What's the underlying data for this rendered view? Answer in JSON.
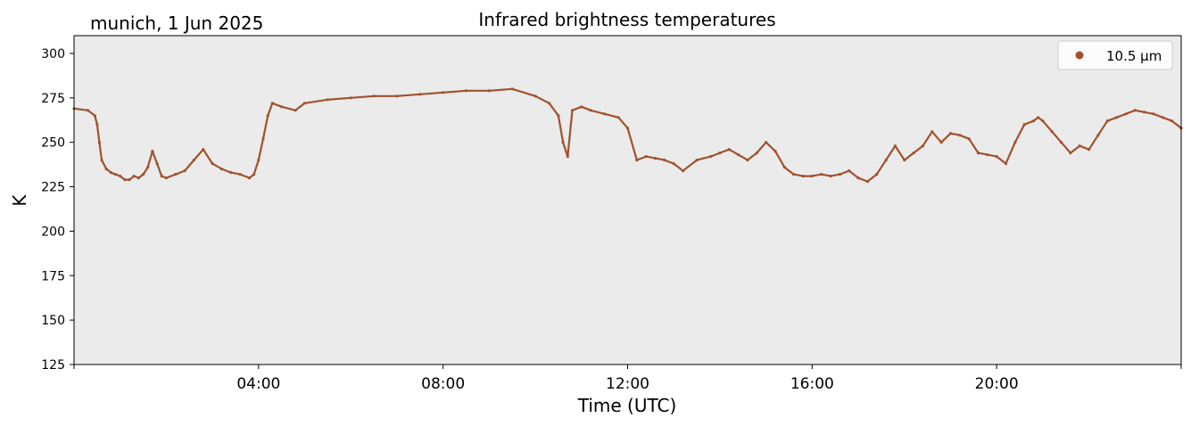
{
  "corner_label": "munich, 1 Jun 2025",
  "chart_data": {
    "type": "scatter",
    "title": "Infrared brightness temperatures",
    "xlabel": "Time (UTC)",
    "ylabel": "K",
    "xlim": [
      "00:00",
      "24:00"
    ],
    "ylim": [
      125,
      310
    ],
    "x_ticks": [
      "04:00",
      "08:00",
      "12:00",
      "16:00",
      "20:00"
    ],
    "y_ticks": [
      125,
      150,
      175,
      200,
      225,
      250,
      275,
      300
    ],
    "grid": false,
    "legend_position": "top-right",
    "plot_background": "#ebebeb",
    "series": [
      {
        "name": "10.5 µm",
        "color": "#a0522d",
        "x_hours": [
          0.0,
          0.3,
          0.45,
          0.5,
          0.55,
          0.6,
          0.7,
          0.8,
          0.9,
          1.0,
          1.1,
          1.2,
          1.3,
          1.4,
          1.5,
          1.6,
          1.7,
          1.8,
          1.9,
          2.0,
          2.2,
          2.4,
          2.6,
          2.8,
          3.0,
          3.2,
          3.4,
          3.6,
          3.8,
          3.9,
          4.0,
          4.1,
          4.2,
          4.3,
          4.5,
          4.8,
          5.0,
          5.5,
          6.0,
          6.5,
          7.0,
          7.5,
          8.0,
          8.5,
          9.0,
          9.5,
          10.0,
          10.3,
          10.5,
          10.6,
          10.7,
          10.8,
          11.0,
          11.2,
          11.5,
          11.8,
          12.0,
          12.2,
          12.4,
          12.6,
          12.8,
          13.0,
          13.2,
          13.5,
          13.8,
          14.0,
          14.2,
          14.4,
          14.6,
          14.8,
          15.0,
          15.2,
          15.4,
          15.6,
          15.8,
          16.0,
          16.2,
          16.4,
          16.6,
          16.8,
          17.0,
          17.2,
          17.4,
          17.6,
          17.8,
          18.0,
          18.2,
          18.4,
          18.6,
          18.8,
          19.0,
          19.2,
          19.4,
          19.6,
          19.8,
          20.0,
          20.2,
          20.4,
          20.6,
          20.8,
          20.9,
          21.0,
          21.2,
          21.4,
          21.6,
          21.8,
          22.0,
          22.2,
          22.4,
          22.6,
          22.8,
          23.0,
          23.2,
          23.4,
          23.6,
          23.8,
          24.0
        ],
        "values": [
          269,
          268,
          265,
          260,
          250,
          240,
          235,
          233,
          232,
          231,
          229,
          229,
          231,
          230,
          232,
          236,
          245,
          238,
          231,
          230,
          232,
          234,
          240,
          246,
          238,
          235,
          233,
          232,
          230,
          232,
          240,
          252,
          265,
          272,
          270,
          268,
          272,
          274,
          275,
          276,
          276,
          277,
          278,
          279,
          279,
          280,
          276,
          272,
          265,
          250,
          242,
          268,
          270,
          268,
          266,
          264,
          258,
          240,
          242,
          241,
          240,
          238,
          234,
          240,
          242,
          244,
          246,
          243,
          240,
          244,
          250,
          245,
          236,
          232,
          231,
          231,
          232,
          231,
          232,
          234,
          230,
          228,
          232,
          240,
          248,
          240,
          244,
          248,
          256,
          250,
          255,
          254,
          252,
          244,
          243,
          242,
          238,
          250,
          260,
          262,
          264,
          262,
          256,
          250,
          244,
          248,
          246,
          254,
          262,
          264,
          266,
          268,
          267,
          266,
          264,
          262,
          258
        ]
      }
    ]
  }
}
